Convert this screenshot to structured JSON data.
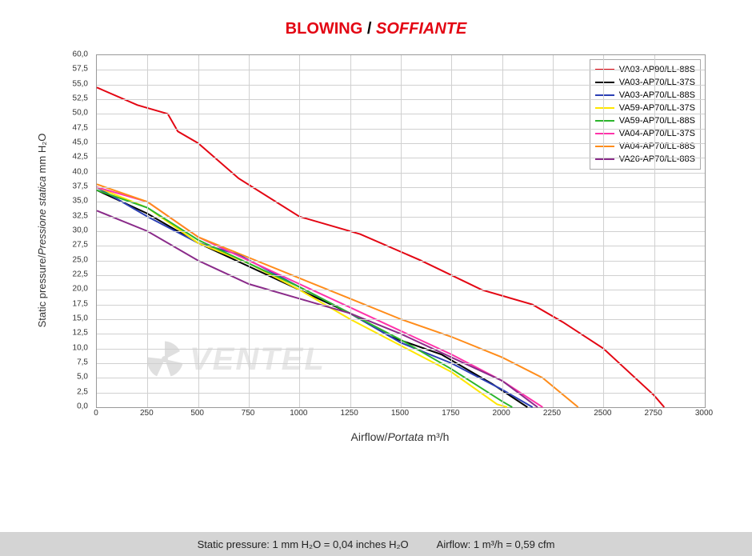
{
  "title_en": "BLOWING",
  "title_sep": " / ",
  "title_it": "SOFFIANTE",
  "y_label_en": "Static pressure",
  "y_label_sep": "/",
  "y_label_it": "Pressione statica",
  "y_label_unit": " mm H₂O",
  "x_label_en": "Airflow",
  "x_label_sep": "/",
  "x_label_it": "Portata",
  "x_label_unit": " m³/h",
  "footer_left": "Static pressure: 1 mm H₂O = 0,04 inches H₂O",
  "footer_right": "Airflow: 1 m³/h = 0,59 cfm",
  "watermark_text": "VENTEL",
  "xlim": [
    0,
    3000
  ],
  "ylim": [
    0,
    60
  ],
  "xtick_step": 250,
  "ytick_step": 2.5,
  "ytick_labels": [
    "0,0",
    "2,5",
    "5,0",
    "7,5",
    "10,0",
    "12,5",
    "15,0",
    "17,5",
    "20,0",
    "22,5",
    "25,0",
    "27,5",
    "30,0",
    "32,5",
    "35,0",
    "37,5",
    "40,0",
    "42,5",
    "45,0",
    "47,5",
    "50,0",
    "52,5",
    "55,0",
    "57,5",
    "60,0"
  ],
  "xtick_labels": [
    "0",
    "250",
    "500",
    "750",
    "1000",
    "1250",
    "1500",
    "1750",
    "2000",
    "2250",
    "2500",
    "2750",
    "3000"
  ],
  "grid_color": "#d0d0d0",
  "bg_color": "#ffffff",
  "series": [
    {
      "name": "VA03-AP90/LL-88S",
      "color": "#e30613",
      "data": [
        [
          0,
          54.5
        ],
        [
          200,
          51.5
        ],
        [
          350,
          50
        ],
        [
          400,
          47
        ],
        [
          500,
          45
        ],
        [
          700,
          39
        ],
        [
          1000,
          32.5
        ],
        [
          1300,
          29.5
        ],
        [
          1600,
          25
        ],
        [
          1900,
          20
        ],
        [
          2150,
          17.5
        ],
        [
          2300,
          14.5
        ],
        [
          2500,
          10
        ],
        [
          2750,
          2
        ],
        [
          2800,
          0
        ]
      ]
    },
    {
      "name": "VA03-AP70/LL-37S",
      "color": "#000000",
      "data": [
        [
          0,
          37
        ],
        [
          250,
          33
        ],
        [
          500,
          28
        ],
        [
          750,
          24
        ],
        [
          1000,
          20
        ],
        [
          1250,
          16
        ],
        [
          1450,
          12
        ],
        [
          1700,
          9
        ],
        [
          1950,
          4
        ],
        [
          2125,
          0
        ]
      ]
    },
    {
      "name": "VA03-AP70/LL-88S",
      "color": "#2b3fb5",
      "data": [
        [
          0,
          37.5
        ],
        [
          250,
          32.5
        ],
        [
          500,
          28
        ],
        [
          700,
          26
        ],
        [
          1000,
          20.5
        ],
        [
          1250,
          16
        ],
        [
          1500,
          11
        ],
        [
          1750,
          7.5
        ],
        [
          2000,
          3
        ],
        [
          2150,
          0
        ]
      ]
    },
    {
      "name": "VA59-AP70/LL-37S",
      "color": "#ffe600",
      "data": [
        [
          0,
          37.5
        ],
        [
          250,
          34
        ],
        [
          500,
          28
        ],
        [
          750,
          24.5
        ],
        [
          1000,
          20
        ],
        [
          1250,
          15
        ],
        [
          1500,
          10.5
        ],
        [
          1750,
          6
        ],
        [
          1975,
          0.5
        ],
        [
          2025,
          0
        ]
      ]
    },
    {
      "name": "VA59-AP70/LL-88S",
      "color": "#2bb52b",
      "data": [
        [
          0,
          37
        ],
        [
          250,
          34
        ],
        [
          500,
          28.5
        ],
        [
          750,
          24.5
        ],
        [
          1000,
          20.5
        ],
        [
          1250,
          16
        ],
        [
          1500,
          11.5
        ],
        [
          1750,
          6.5
        ],
        [
          2000,
          1
        ],
        [
          2050,
          0
        ]
      ]
    },
    {
      "name": "VA04-AP70/LL-37S",
      "color": "#ff33aa",
      "data": [
        [
          0,
          37.5
        ],
        [
          250,
          35
        ],
        [
          500,
          29
        ],
        [
          750,
          25
        ],
        [
          1000,
          21
        ],
        [
          1250,
          17
        ],
        [
          1500,
          13
        ],
        [
          1750,
          9
        ],
        [
          2000,
          4.5
        ],
        [
          2200,
          0
        ]
      ]
    },
    {
      "name": "VA04-AP70/LL-88S",
      "color": "#ff8c1a",
      "data": [
        [
          0,
          38
        ],
        [
          250,
          35
        ],
        [
          500,
          29
        ],
        [
          750,
          25.5
        ],
        [
          1000,
          22
        ],
        [
          1250,
          18.5
        ],
        [
          1500,
          15
        ],
        [
          1750,
          12
        ],
        [
          2000,
          8.5
        ],
        [
          2200,
          5
        ],
        [
          2375,
          0
        ]
      ]
    },
    {
      "name": "VA26-AP70/LL-88S",
      "color": "#8a2b8a",
      "data": [
        [
          0,
          33.5
        ],
        [
          250,
          30
        ],
        [
          500,
          25
        ],
        [
          750,
          21
        ],
        [
          1000,
          18.5
        ],
        [
          1250,
          16
        ],
        [
          1500,
          12.5
        ],
        [
          1750,
          8.5
        ],
        [
          2000,
          4.5
        ],
        [
          2175,
          0
        ]
      ]
    }
  ]
}
